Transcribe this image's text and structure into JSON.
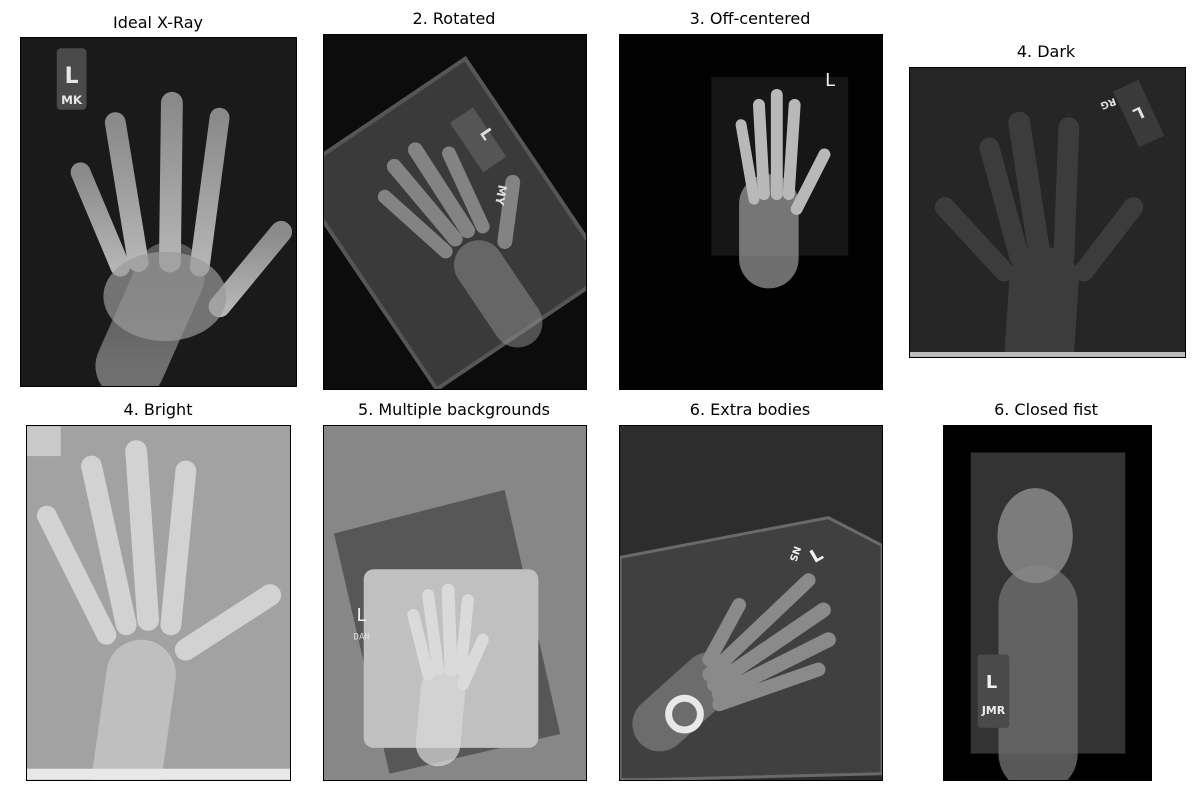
{
  "panels": [
    {
      "title": "Ideal X-Ray",
      "marker_letter": "L",
      "marker_initials": "MK"
    },
    {
      "title": "2. Rotated",
      "marker_letter": "L",
      "marker_initials": "MY"
    },
    {
      "title": "3. Off-centered",
      "marker_letter": "L"
    },
    {
      "title": "4. Dark",
      "marker_letter": "L",
      "marker_initials": "RG"
    },
    {
      "title": "4. Bright"
    },
    {
      "title": "5. Multiple backgrounds",
      "marker_letter": "L",
      "marker_initials": "DAN"
    },
    {
      "title": "6. Extra bodies",
      "marker_letter": "L",
      "marker_initials": "NS"
    },
    {
      "title": "6. Closed fist",
      "marker_letter": "L",
      "marker_initials": "JMR"
    }
  ]
}
